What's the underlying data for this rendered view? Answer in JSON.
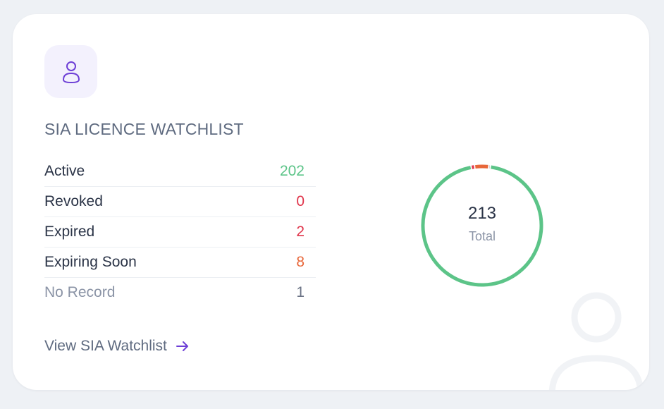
{
  "widget": {
    "title": "SIA LICENCE WATCHLIST",
    "icon": "user-icon",
    "accent_color": "#6d3fd6",
    "stats": [
      {
        "label": "Active",
        "value": "202",
        "color": "#5cc488"
      },
      {
        "label": "Revoked",
        "value": "0",
        "color": "#e0354b"
      },
      {
        "label": "Expired",
        "value": "2",
        "color": "#e0354b"
      },
      {
        "label": "Expiring Soon",
        "value": "8",
        "color": "#e8673a"
      },
      {
        "label": "No Record",
        "value": "1",
        "color": "#6b7385"
      }
    ],
    "link_label": "View SIA Watchlist",
    "donut": {
      "total": "213",
      "total_label": "Total"
    }
  },
  "chart_data": {
    "type": "pie",
    "categories": [
      "Active",
      "Revoked",
      "Expired",
      "Expiring Soon",
      "No Record"
    ],
    "values": [
      202,
      0,
      2,
      8,
      1
    ],
    "colors": [
      "#5cc488",
      "#e0354b",
      "#e0354b",
      "#e8673a",
      "#c3c8d2"
    ]
  }
}
